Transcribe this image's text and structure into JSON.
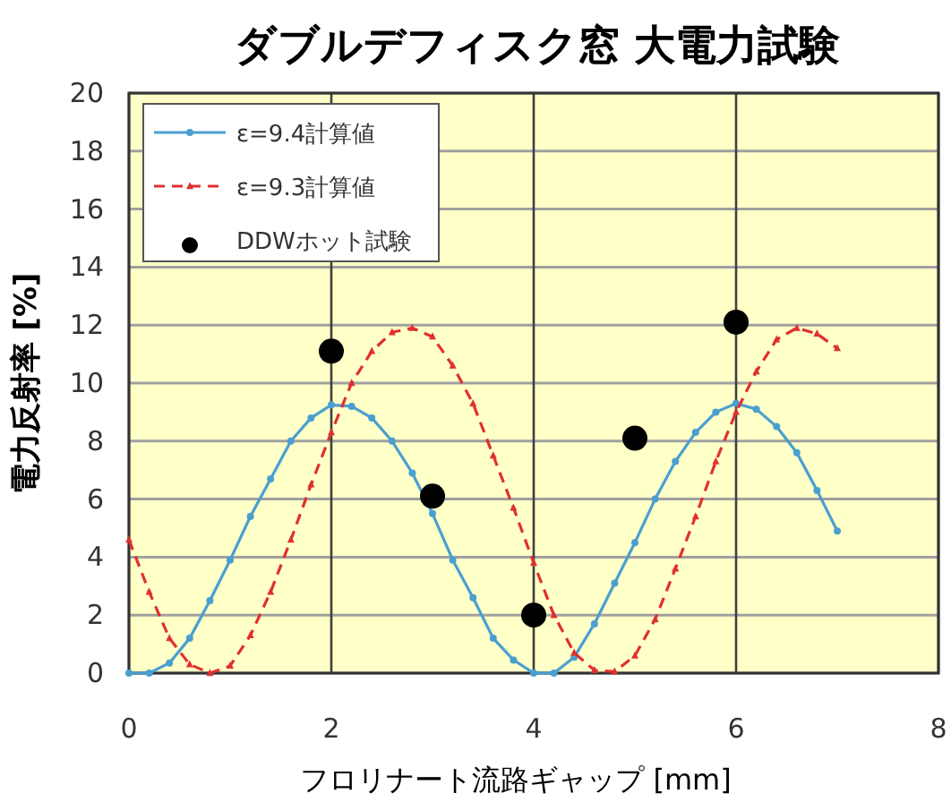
{
  "chart_data": {
    "type": "line",
    "title": "ダブルデフィスク窓  大電力試験",
    "xlabel": "フロリナート流路ギャップ [mm]",
    "ylabel": "電力反射率 [%]",
    "xlim": [
      0,
      8
    ],
    "xticks": [
      0,
      2,
      4,
      6,
      8
    ],
    "ylim": [
      0,
      20
    ],
    "yticks": [
      0,
      2,
      4,
      6,
      8,
      10,
      12,
      14,
      16,
      18,
      20
    ],
    "grid": true,
    "legend": "top left",
    "series": [
      {
        "name": "ε=9.4計算値",
        "color": "#4a9fd0",
        "marker": "circle",
        "line_style": "solid",
        "x": [
          0,
          0.2,
          0.4,
          0.6,
          0.8,
          1.0,
          1.2,
          1.4,
          1.6,
          1.8,
          2.0,
          2.2,
          2.4,
          2.6,
          2.8,
          3.0,
          3.2,
          3.4,
          3.6,
          3.8,
          4.0,
          4.2,
          4.4,
          4.6,
          4.8,
          5.0,
          5.2,
          5.4,
          5.6,
          5.8,
          6.0,
          6.2,
          6.4,
          6.6,
          6.8,
          7.0
        ],
        "values": [
          0,
          0,
          0.35,
          1.2,
          2.5,
          3.9,
          5.4,
          6.7,
          8.0,
          8.8,
          9.25,
          9.2,
          8.8,
          8.0,
          6.9,
          5.5,
          3.9,
          2.6,
          1.2,
          0.45,
          0,
          0,
          0.55,
          1.7,
          3.1,
          4.5,
          6.0,
          7.3,
          8.3,
          9.0,
          9.3,
          9.1,
          8.5,
          7.6,
          6.3,
          4.9
        ]
      },
      {
        "name": "ε=9.3計算値",
        "color": "#e03030",
        "marker": "triangle",
        "line_style": "dashed",
        "x": [
          0,
          0.2,
          0.4,
          0.6,
          0.8,
          1.0,
          1.2,
          1.4,
          1.6,
          1.8,
          2.0,
          2.2,
          2.4,
          2.6,
          2.8,
          3.0,
          3.2,
          3.4,
          3.6,
          3.8,
          4.0,
          4.2,
          4.4,
          4.6,
          4.8,
          5.0,
          5.2,
          5.4,
          5.6,
          5.8,
          6.0,
          6.2,
          6.4,
          6.6,
          6.8,
          7.0
        ],
        "values": [
          4.6,
          2.8,
          1.2,
          0.3,
          0,
          0.25,
          1.3,
          2.8,
          4.6,
          6.5,
          8.3,
          10.0,
          11.1,
          11.75,
          11.9,
          11.6,
          10.6,
          9.3,
          7.5,
          5.7,
          3.8,
          2.0,
          0.7,
          0.1,
          0.05,
          0.6,
          1.85,
          3.6,
          5.4,
          7.3,
          9.0,
          10.4,
          11.5,
          11.9,
          11.7,
          11.2
        ]
      },
      {
        "name": "DDWホット試験",
        "type": "scatter",
        "color": "#000000",
        "marker": "circle",
        "x": [
          2,
          3,
          4,
          5,
          6
        ],
        "values": [
          11.1,
          6.1,
          2.0,
          8.1,
          12.1
        ]
      }
    ]
  }
}
